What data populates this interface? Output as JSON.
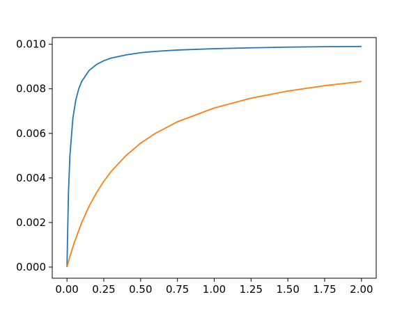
{
  "chart_data": {
    "type": "line",
    "title": "",
    "xlabel": "",
    "ylabel": "",
    "xlim": [
      -0.1,
      2.1
    ],
    "ylim": [
      -0.0005,
      0.0103
    ],
    "x_ticks": [
      "0.00",
      "0.25",
      "0.50",
      "0.75",
      "1.00",
      "1.25",
      "1.50",
      "1.75",
      "2.00"
    ],
    "y_ticks": [
      "0.000",
      "0.002",
      "0.004",
      "0.006",
      "0.008",
      "0.010"
    ],
    "grid": false,
    "legend": "none",
    "series": [
      {
        "color": "#1f77b4",
        "x": [
          0.0,
          0.01,
          0.02,
          0.04,
          0.06,
          0.08,
          0.1,
          0.15,
          0.2,
          0.25,
          0.3,
          0.4,
          0.5,
          0.6,
          0.75,
          1.0,
          1.25,
          1.5,
          1.75,
          2.0
        ],
        "y": [
          0.0,
          0.00333,
          0.005,
          0.00667,
          0.0075,
          0.008,
          0.00833,
          0.00882,
          0.00909,
          0.00926,
          0.00938,
          0.00952,
          0.00962,
          0.00968,
          0.00974,
          0.0098,
          0.00984,
          0.00987,
          0.00989,
          0.0099
        ]
      },
      {
        "color": "#ff7f0e",
        "x": [
          0.0,
          0.02,
          0.05,
          0.1,
          0.15,
          0.2,
          0.25,
          0.3,
          0.4,
          0.5,
          0.6,
          0.75,
          1.0,
          1.25,
          1.5,
          1.75,
          2.0
        ],
        "y": [
          0.0,
          0.00048,
          0.00111,
          0.002,
          0.00273,
          0.00333,
          0.00385,
          0.00429,
          0.005,
          0.00556,
          0.006,
          0.00652,
          0.00714,
          0.00758,
          0.0079,
          0.00814,
          0.00833
        ]
      }
    ]
  }
}
